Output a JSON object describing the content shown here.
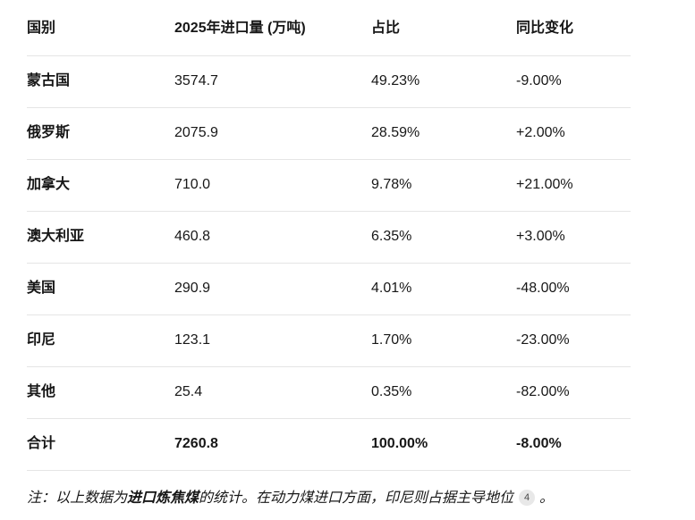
{
  "table": {
    "columns": [
      "国别",
      "2025年进口量 (万吨)",
      "占比",
      "同比变化"
    ],
    "rows": [
      [
        "蒙古国",
        "3574.7",
        "49.23%",
        "-9.00%"
      ],
      [
        "俄罗斯",
        "2075.9",
        "28.59%",
        "+2.00%"
      ],
      [
        "加拿大",
        "710.0",
        "9.78%",
        "+21.00%"
      ],
      [
        "澳大利亚",
        "460.8",
        "6.35%",
        "+3.00%"
      ],
      [
        "美国",
        "290.9",
        "4.01%",
        "-48.00%"
      ],
      [
        "印尼",
        "123.1",
        "1.70%",
        "-23.00%"
      ],
      [
        "其他",
        "25.4",
        "0.35%",
        "-82.00%"
      ]
    ],
    "total": [
      "合计",
      "7260.8",
      "100.00%",
      "-8.00%"
    ]
  },
  "note": {
    "prefix": "注：以上数据为",
    "bold": "进口炼焦煤",
    "middle": "的统计。在动力煤进口方面，印尼则占据主导地位",
    "citation": "4",
    "suffix": "。"
  },
  "colors": {
    "background": "#ffffff",
    "text": "#171717",
    "separator": "#e5e5e5",
    "citation_badge_bg": "#e8e8e8",
    "citation_badge_text": "#4a4a4a"
  }
}
